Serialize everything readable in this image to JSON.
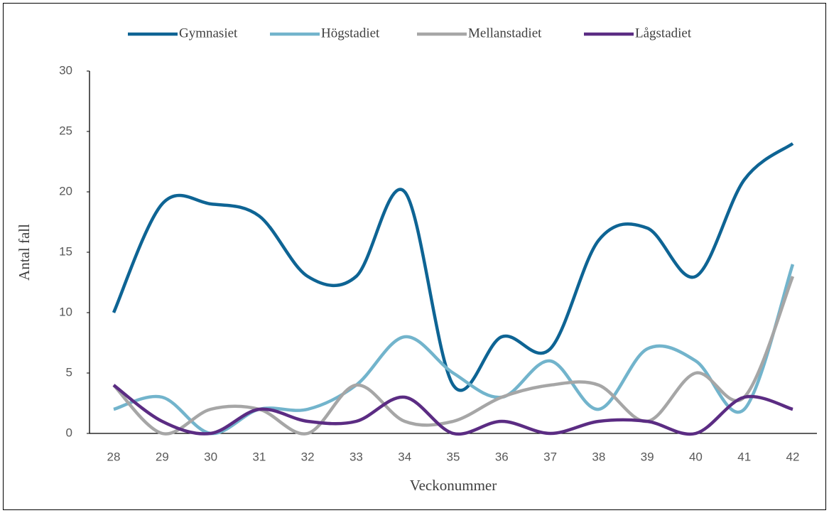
{
  "chart_data": {
    "type": "line",
    "categories": [
      "28",
      "29",
      "30",
      "31",
      "32",
      "33",
      "34",
      "35",
      "36",
      "37",
      "38",
      "39",
      "40",
      "41",
      "42"
    ],
    "series": [
      {
        "name": "Gymnasiet",
        "color": "#0e6494",
        "values": [
          10,
          19,
          19,
          18,
          13,
          13,
          20,
          4,
          8,
          7,
          16,
          17,
          13,
          21,
          24
        ]
      },
      {
        "name": "Högstadiet",
        "color": "#72b4cc",
        "values": [
          2,
          3,
          0,
          2,
          2,
          4,
          8,
          5,
          3,
          6,
          2,
          7,
          6,
          2,
          14
        ]
      },
      {
        "name": "Mellanstadiet",
        "color": "#a6a6a6",
        "values": [
          4,
          0,
          2,
          2,
          0,
          4,
          1,
          1,
          3,
          4,
          4,
          1,
          5,
          3,
          13
        ]
      },
      {
        "name": "Lågstadiet",
        "color": "#5b2c83",
        "values": [
          4,
          1,
          0,
          2,
          1,
          1,
          3,
          0,
          1,
          0,
          1,
          1,
          0,
          3,
          2
        ]
      }
    ],
    "ylim": [
      0,
      30
    ],
    "yticks": [
      0,
      5,
      10,
      15,
      20,
      25,
      30
    ],
    "xlabel": "Veckonummer",
    "ylabel": "Antal fall",
    "smooth": true
  }
}
